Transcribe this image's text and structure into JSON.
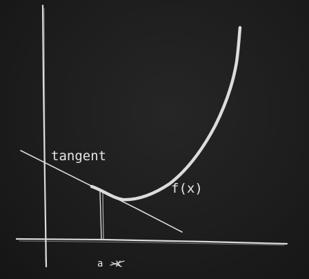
{
  "labels": {
    "tangent": "tangent",
    "function": "f(x)",
    "point": "a",
    "axis": "x"
  },
  "colors": {
    "background": "#1c1c1c",
    "chalk": "#dcdcdc"
  }
}
